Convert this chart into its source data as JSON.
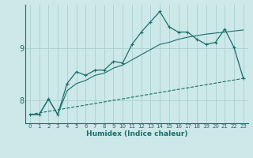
{
  "title": "",
  "xlabel": "Humidex (Indice chaleur)",
  "ylabel": "",
  "x_ticks": [
    0,
    1,
    2,
    3,
    4,
    5,
    6,
    7,
    8,
    9,
    10,
    11,
    12,
    13,
    14,
    15,
    16,
    17,
    18,
    19,
    20,
    21,
    22,
    23
  ],
  "y_ticks": [
    8,
    9
  ],
  "ylim": [
    7.55,
    9.85
  ],
  "xlim": [
    -0.5,
    23.5
  ],
  "bg_color": "#cce8e8",
  "line_color": "#1a6e6a",
  "grid_color": "#aacfcf",
  "line1_x": [
    0,
    1,
    2,
    3,
    4,
    5,
    6,
    7,
    8,
    9,
    10,
    11,
    12,
    13,
    14,
    15,
    16,
    17,
    18,
    19,
    20,
    21,
    22,
    23
  ],
  "line1_y": [
    7.72,
    7.72,
    8.02,
    7.72,
    8.32,
    8.55,
    8.48,
    8.58,
    8.58,
    8.75,
    8.72,
    9.08,
    9.32,
    9.52,
    9.72,
    9.42,
    9.32,
    9.32,
    9.18,
    9.08,
    9.12,
    9.38,
    9.02,
    8.42
  ],
  "line2_x": [
    0,
    1,
    2,
    3,
    4,
    5,
    6,
    7,
    8,
    9,
    10,
    11,
    12,
    13,
    14,
    15,
    16,
    17,
    18,
    19,
    20,
    21,
    22,
    23
  ],
  "line2_y": [
    7.72,
    7.72,
    8.02,
    7.72,
    8.18,
    8.32,
    8.38,
    8.48,
    8.52,
    8.62,
    8.68,
    8.78,
    8.88,
    8.98,
    9.08,
    9.12,
    9.18,
    9.22,
    9.25,
    9.28,
    9.3,
    9.32,
    9.34,
    9.36
  ],
  "line3_x": [
    0,
    23
  ],
  "line3_y": [
    7.72,
    8.42
  ]
}
